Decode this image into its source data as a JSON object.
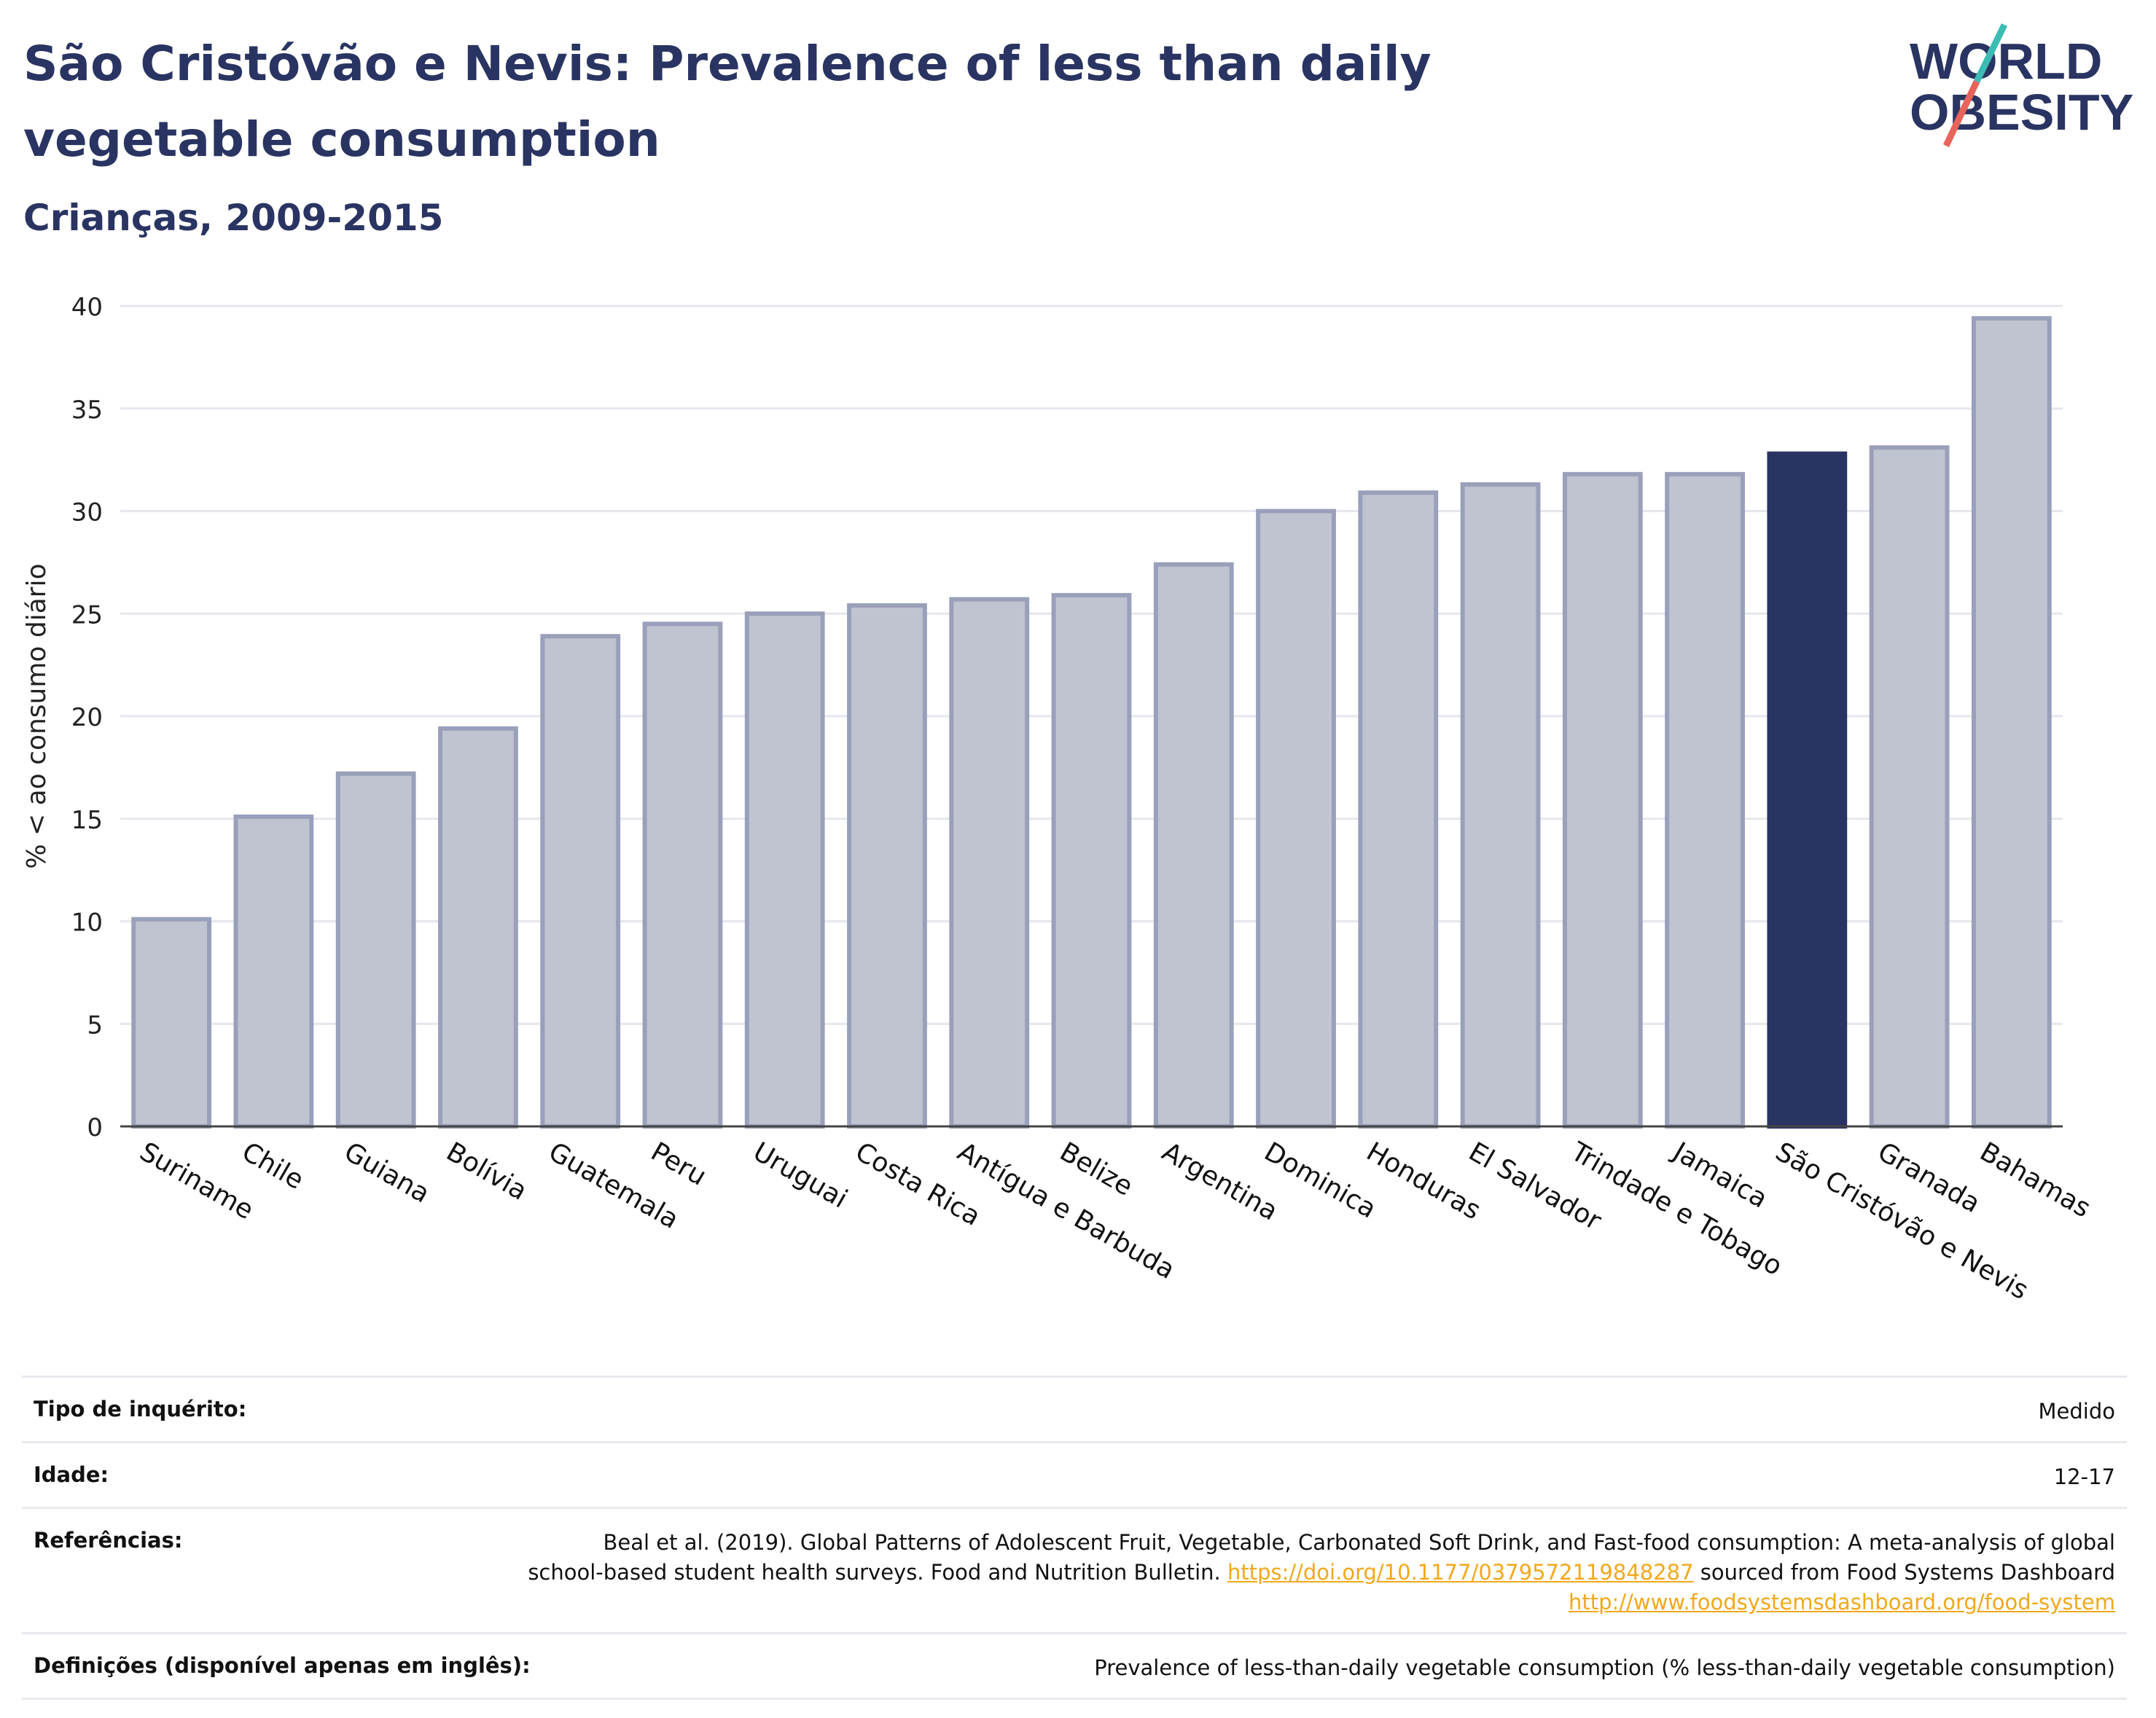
{
  "header": {
    "title": "São Cristóvão e Nevis: Prevalence of less than daily vegetable consumption",
    "subtitle": "Crianças, 2009-2015"
  },
  "logo": {
    "line1": "WORLD",
    "line2": "OBESITY"
  },
  "chart_data": {
    "type": "bar",
    "title": "São Cristóvão e Nevis: Prevalence of less than daily vegetable consumption",
    "subtitle": "Crianças, 2009-2015",
    "xlabel": "",
    "ylabel": "% < ao consumo diário",
    "ylim": [
      0,
      40
    ],
    "yticks": [
      0,
      5,
      10,
      15,
      20,
      25,
      30,
      35,
      40
    ],
    "grid": true,
    "highlight": "São Cristóvão e Nevis",
    "colors": {
      "bar": "#c0c3d0",
      "bar_edge": "#9aa0ba",
      "highlight": "#2a3462",
      "grid": "#e6e7ee"
    },
    "categories": [
      "Suriname",
      "Chile",
      "Guiana",
      "Bolívia",
      "Guatemala",
      "Peru",
      "Uruguai",
      "Costa Rica",
      "Antígua e Barbuda",
      "Belize",
      "Argentina",
      "Dominica",
      "Honduras",
      "El Salvador",
      "Trindade e Tobago",
      "Jamaica",
      "São Cristóvão e Nevis",
      "Granada",
      "Bahamas"
    ],
    "values": [
      10.1,
      15.1,
      17.2,
      19.4,
      23.9,
      24.5,
      25.0,
      25.4,
      25.7,
      25.9,
      27.4,
      30.0,
      30.9,
      31.3,
      31.8,
      31.8,
      32.8,
      33.1,
      39.4
    ]
  },
  "meta": [
    {
      "label": "Tipo de inquérito:",
      "value": "Medido"
    },
    {
      "label": "Idade:",
      "value": "12-17"
    },
    {
      "label": "Referências:",
      "value_pre": "Beal et al. (2019). Global Patterns of Adolescent Fruit, Vegetable, Carbonated Soft Drink, and Fast-food consumption: A meta-analysis of global school-based student health surveys. Food and Nutrition Bulletin. ",
      "link1": "https://doi.org/10.1177/0379572119848287",
      "value_mid": " sourced from Food Systems Dashboard ",
      "link2": "http://www.foodsystemsdashboard.org/food-system"
    },
    {
      "label": "Definições (disponível apenas em inglês):",
      "value": "Prevalence of less-than-daily vegetable consumption (% less-than-daily vegetable consumption)"
    }
  ]
}
